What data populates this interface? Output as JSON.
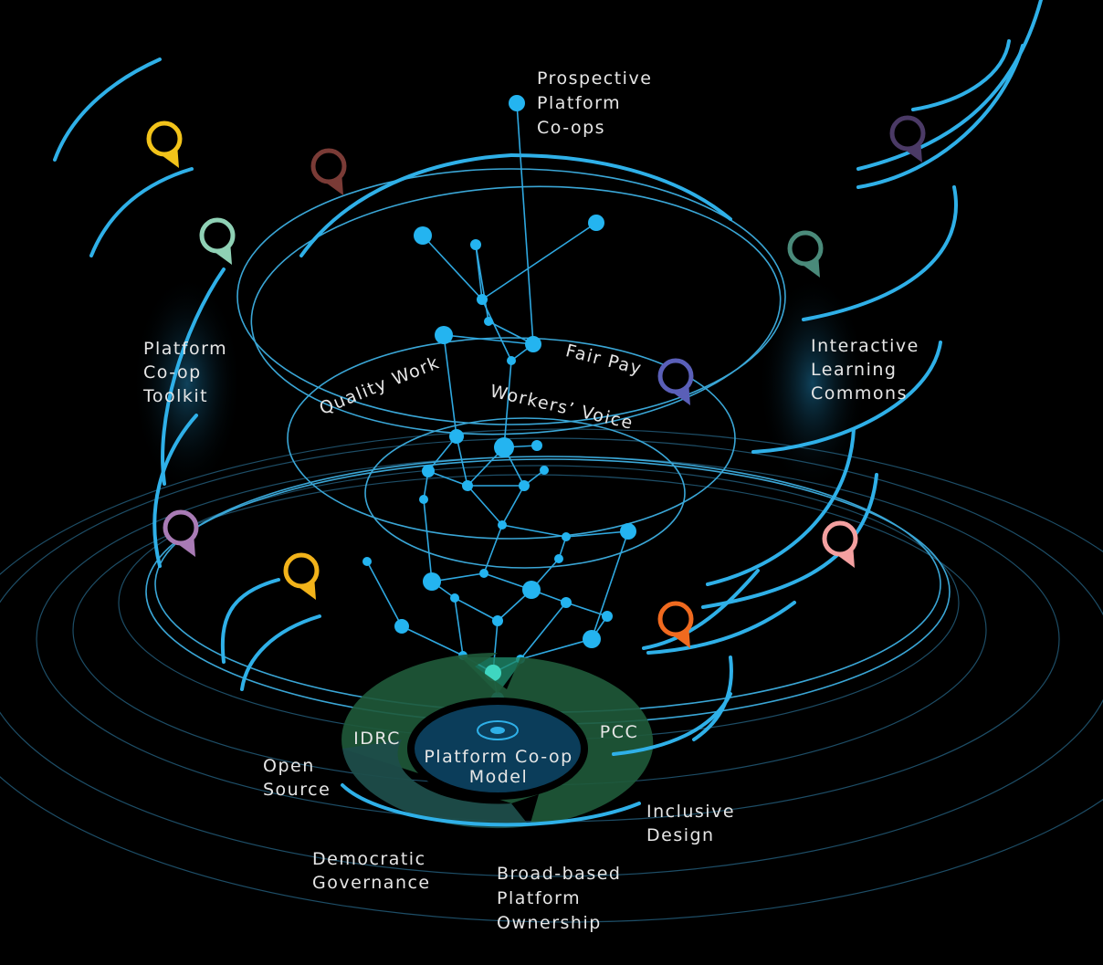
{
  "labels": {
    "prospective": {
      "lines": [
        "Prospective",
        "Platform",
        "Co-ops"
      ]
    },
    "toolkit": {
      "lines": [
        "Platform",
        "Co-op",
        "Toolkit"
      ]
    },
    "commons": {
      "lines": [
        "Interactive",
        "Learning",
        "Commons"
      ]
    },
    "quality_work": "Quality Work",
    "fair_pay": "Fair Pay",
    "workers_voice": "Workers’ Voice",
    "idrc": "IDRC",
    "pcc": "PCC",
    "model": {
      "lines": [
        "Platform Co-op",
        "Model"
      ]
    },
    "open_source": {
      "lines": [
        "Open",
        "Source"
      ]
    },
    "inclusive_design": {
      "lines": [
        "Inclusive",
        "Design"
      ]
    },
    "democratic_governance": {
      "lines": [
        "Democratic",
        "Governance"
      ]
    },
    "ownership": {
      "lines": [
        "Broad-based",
        "Platform",
        "Ownership"
      ]
    }
  }
}
